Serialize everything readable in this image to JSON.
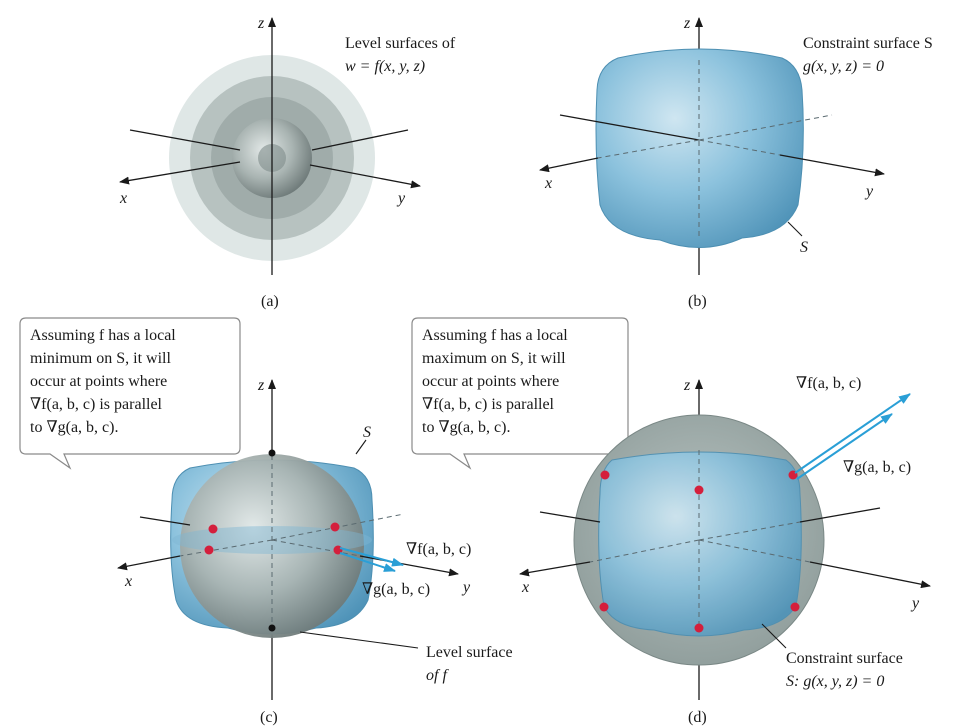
{
  "panels": {
    "a": {
      "label": "(a)",
      "caption_line1": "Level surfaces of",
      "caption_line2": "w = f(x, y, z)",
      "axis_x": "x",
      "axis_y": "y",
      "axis_z": "z"
    },
    "b": {
      "label": "(b)",
      "caption_line1": "Constraint surface S",
      "caption_line2": "g(x, y, z) = 0",
      "surface_tag": "S",
      "axis_x": "x",
      "axis_y": "y",
      "axis_z": "z"
    },
    "c": {
      "label": "(c)",
      "note_lines": [
        "Assuming f has a local",
        "minimum on S, it will",
        "occur at points where",
        "∇f(a, b, c) is parallel",
        "to ∇g(a, b, c)."
      ],
      "surface_tag": "S",
      "grad_f": "∇f(a, b, c)",
      "grad_g": "∇g(a, b, c)",
      "level_line1": "Level surface",
      "level_line2": "of f",
      "axis_x": "x",
      "axis_y": "y",
      "axis_z": "z"
    },
    "d": {
      "label": "(d)",
      "note_lines": [
        "Assuming f has a local",
        "maximum on S, it will",
        "occur at points where",
        "∇f(a, b, c) is parallel",
        "to ∇g(a, b, c)."
      ],
      "grad_f": "∇f(a, b, c)",
      "grad_g": "∇g(a, b, c)",
      "constraint_line1": "Constraint surface",
      "constraint_line2": "S: g(x, y, z) = 0",
      "axis_x": "x",
      "axis_y": "y",
      "axis_z": "z"
    }
  },
  "colors": {
    "constraint_blue": "#6aaed0",
    "level_gray": "#9aa8a6",
    "gradient_arrow": "#2a9fd6",
    "point_red": "#d41f3c"
  }
}
